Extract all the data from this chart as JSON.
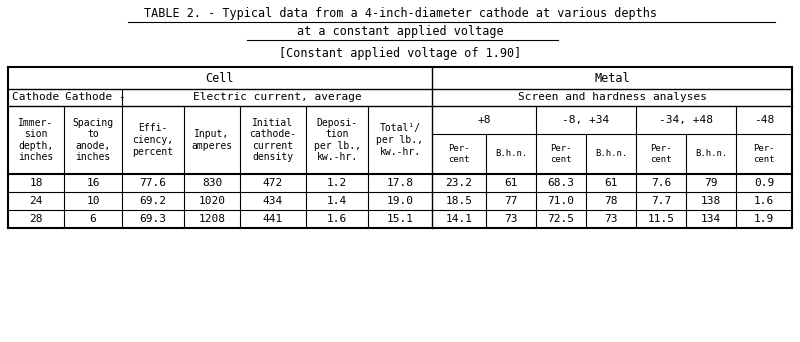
{
  "title_line1": "TABLE 2. - Typical data from a 4-inch-diameter cathode at various depths",
  "title_line2": "at a constant applied voltage",
  "subtitle": "[Constant applied voltage of 1.90]",
  "bg_color": "#ffffff",
  "text_color": "#000000",
  "font_family": "monospace",
  "rows": [
    [
      "18",
      "16",
      "77.6",
      "830",
      "472",
      "1.2",
      "17.8",
      "23.2",
      "61",
      "68.3",
      "61",
      "7.6",
      "79",
      "0.9"
    ],
    [
      "24",
      "10",
      "69.2",
      "1020",
      "434",
      "1.4",
      "19.0",
      "18.5",
      "77",
      "71.0",
      "78",
      "7.7",
      "138",
      "1.6"
    ],
    [
      "28",
      "6",
      "69.3",
      "1208",
      "441",
      "1.6",
      "15.1",
      "14.1",
      "73",
      "72.5",
      "73",
      "11.5",
      "134",
      "1.9"
    ]
  ]
}
